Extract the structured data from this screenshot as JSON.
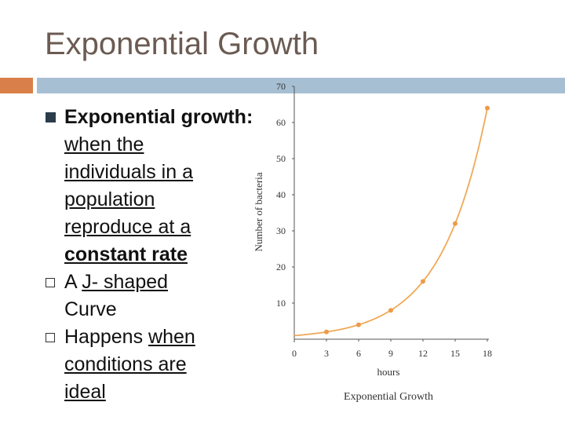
{
  "slide": {
    "title": "Exponential Growth"
  },
  "bullets": [
    {
      "lead": "Exponential growth:",
      "parts": [
        "when the",
        "individuals in a",
        "population",
        "reproduce at a"
      ],
      "strong": "constant rate"
    },
    {
      "a": "A ",
      "b": "J- shaped",
      "c": "Curve"
    },
    {
      "a": "Happens ",
      "b": "when",
      "c": "conditions are",
      "d": "ideal"
    }
  ],
  "colors": {
    "title": "#6b5b53",
    "accent_orange": "#d9804a",
    "accent_blue": "#a7bfd3",
    "curve": "#f0a957",
    "points": "#ee9a48"
  },
  "chart_data": {
    "type": "line",
    "title": "Exponential Growth",
    "xlabel": "hours",
    "ylabel": "Number of bacteria",
    "x": [
      0,
      3,
      6,
      9,
      12,
      15,
      18
    ],
    "series": [
      {
        "values": [
          1,
          2,
          4,
          8,
          16,
          32,
          64
        ]
      }
    ],
    "xticks": [
      "0",
      "3",
      "6",
      "9",
      "12",
      "15",
      "18"
    ],
    "yticks": [
      "10",
      "20",
      "30",
      "40",
      "50",
      "60",
      "70"
    ],
    "xlim": [
      0,
      18
    ],
    "ylim": [
      0,
      70
    ],
    "grid": false
  }
}
